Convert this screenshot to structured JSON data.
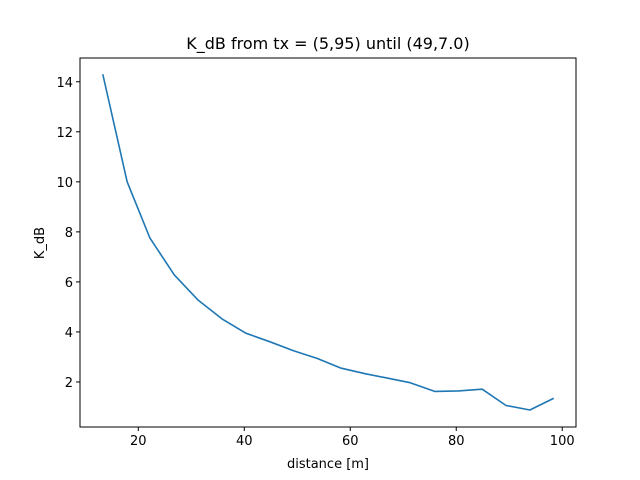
{
  "chart_data": {
    "type": "line",
    "title": "K_dB from tx = (5,95) until (49,7.0)",
    "xlabel": "distance [m]",
    "ylabel": "K_dB",
    "xlim": [
      9.0,
      102.6
    ],
    "ylim": [
      0.2,
      14.95
    ],
    "xticks": [
      20,
      40,
      60,
      80,
      100
    ],
    "yticks": [
      2,
      4,
      6,
      8,
      10,
      12,
      14
    ],
    "grid": false,
    "series": [
      {
        "color": "#1f77b4",
        "x": [
          13.3,
          17.9,
          22.2,
          26.8,
          31.3,
          35.8,
          40.3,
          44.8,
          49.3,
          53.8,
          58.3,
          62.8,
          67.1,
          71.3,
          76.0,
          80.4,
          84.9,
          89.4,
          93.9,
          98.4
        ],
        "y": [
          14.3,
          10.0,
          7.75,
          6.28,
          5.27,
          4.52,
          3.95,
          3.61,
          3.25,
          2.94,
          2.55,
          2.33,
          2.15,
          1.97,
          1.62,
          1.64,
          1.71,
          1.06,
          0.88,
          1.35
        ]
      }
    ]
  }
}
